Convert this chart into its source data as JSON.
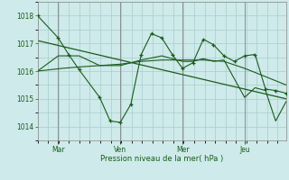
{
  "xlabel": "Pression niveau de la mer( hPa )",
  "bg_color": "#ceeaea",
  "grid_color": "#a8cccc",
  "line_color": "#1a5c1a",
  "ylim": [
    1013.5,
    1018.5
  ],
  "yticks": [
    1014,
    1015,
    1016,
    1017,
    1018
  ],
  "day_labels": [
    "Mar",
    "Ven",
    "Mer",
    "Jeu"
  ],
  "day_positions": [
    0.083,
    0.333,
    0.583,
    0.833
  ],
  "trend": {
    "x": [
      0.0,
      1.0
    ],
    "y": [
      1017.1,
      1015.0
    ]
  },
  "series_smooth": {
    "x": [
      0.0,
      0.05,
      0.1,
      0.167,
      0.25,
      0.333,
      0.417,
      0.5,
      0.583,
      0.667,
      0.75,
      0.833,
      0.917,
      1.0
    ],
    "y": [
      1016.0,
      1016.05,
      1016.1,
      1016.15,
      1016.2,
      1016.25,
      1016.35,
      1016.4,
      1016.4,
      1016.4,
      1016.35,
      1016.1,
      1015.8,
      1015.5
    ]
  },
  "series_main": {
    "x": [
      0.0,
      0.083,
      0.125,
      0.167,
      0.25,
      0.292,
      0.333,
      0.375,
      0.417,
      0.458,
      0.5,
      0.542,
      0.583,
      0.625,
      0.667,
      0.708,
      0.75,
      0.792,
      0.833,
      0.875,
      0.917,
      0.958,
      1.0
    ],
    "y": [
      1018.0,
      1017.2,
      1016.6,
      1016.05,
      1015.05,
      1014.2,
      1014.15,
      1014.8,
      1016.6,
      1017.35,
      1017.2,
      1016.6,
      1016.1,
      1016.3,
      1017.15,
      1016.95,
      1016.55,
      1016.35,
      1016.55,
      1016.6,
      1015.35,
      1015.3,
      1015.2
    ]
  },
  "series_alt": {
    "x": [
      0.0,
      0.083,
      0.167,
      0.25,
      0.333,
      0.417,
      0.5,
      0.583,
      0.625,
      0.667,
      0.708,
      0.75,
      0.833,
      0.875,
      0.917,
      0.958,
      1.0
    ],
    "y": [
      1016.0,
      1016.55,
      1016.55,
      1016.2,
      1016.2,
      1016.4,
      1016.55,
      1016.35,
      1016.35,
      1016.45,
      1016.35,
      1016.4,
      1015.05,
      1015.4,
      1015.3,
      1014.2,
      1014.9
    ]
  },
  "series_extra": {
    "x": [
      0.833,
      0.875,
      0.917,
      0.958,
      1.0
    ],
    "y": [
      1015.05,
      1015.4,
      1015.3,
      1014.2,
      1014.9
    ]
  },
  "xlim": [
    0.0,
    1.0
  ]
}
